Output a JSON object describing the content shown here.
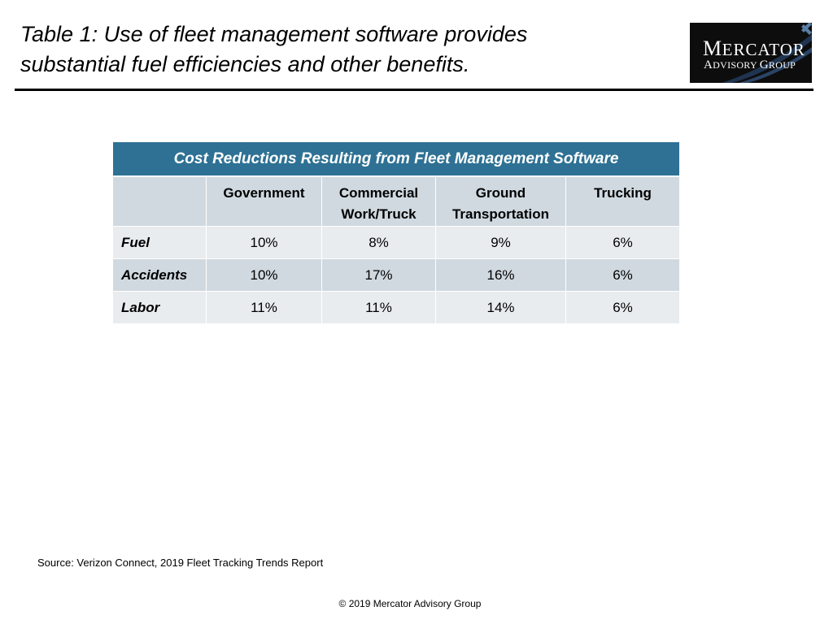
{
  "title": {
    "line1": "Table 1: Use of fleet management software provides",
    "line2": "substantial fuel efficiencies and other benefits."
  },
  "logo": {
    "line1": "Mercator",
    "line2": "Advisory Group"
  },
  "table": {
    "caption": "Cost Reductions Resulting from Fleet Management Software",
    "columns": [
      "",
      "Government",
      [
        "Commercial",
        "Work/Truck"
      ],
      [
        "Ground",
        "Transportation"
      ],
      "Trucking"
    ],
    "rows": [
      {
        "label": "Fuel",
        "values": [
          "10%",
          "8%",
          "9%",
          "6%"
        ]
      },
      {
        "label": "Accidents",
        "values": [
          "10%",
          "17%",
          "16%",
          "6%"
        ]
      },
      {
        "label": "Labor",
        "values": [
          "11%",
          "11%",
          "14%",
          "6%"
        ]
      }
    ]
  },
  "source": "Source: Verizon Connect, 2019 Fleet Tracking Trends Report",
  "copyright": "© 2019 Mercator Advisory Group",
  "colors": {
    "caption_bg": "#2e7194",
    "header_bg": "#d0d9e0",
    "row_light": "#e9ecef",
    "row_dark": "#d0d9e0",
    "logo_bg": "#0d0d0d"
  }
}
